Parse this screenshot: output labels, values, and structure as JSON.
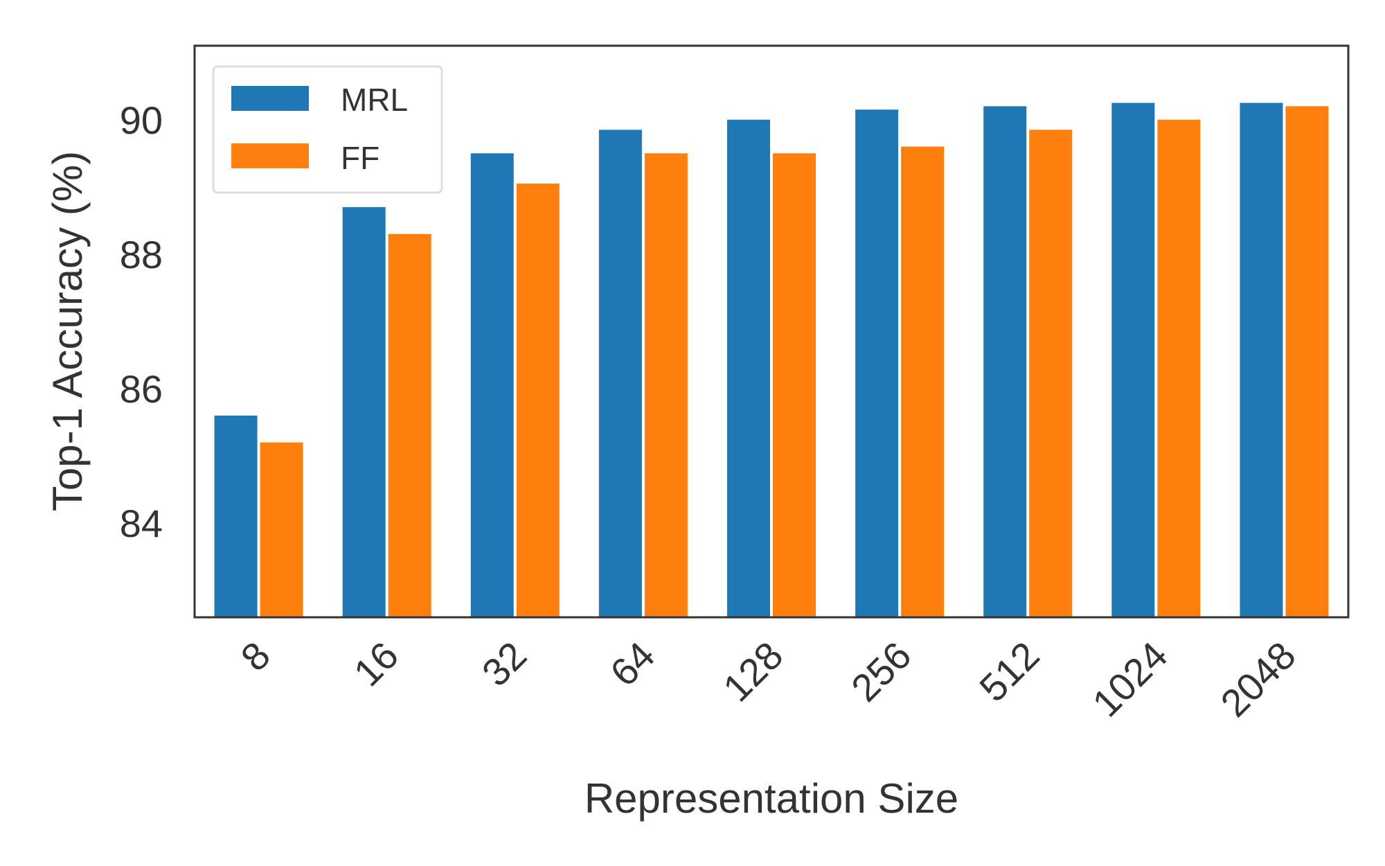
{
  "chart_data": {
    "type": "bar",
    "title": "",
    "xlabel": "Representation Size",
    "ylabel": "Top-1 Accuracy (%)",
    "categories": [
      "8",
      "16",
      "32",
      "64",
      "128",
      "256",
      "512",
      "1024",
      "2048"
    ],
    "series": [
      {
        "name": "MRL",
        "color": "#1f77b4",
        "values": [
          85.6,
          88.7,
          89.5,
          89.85,
          90.0,
          90.15,
          90.2,
          90.25,
          90.25
        ]
      },
      {
        "name": "FF",
        "color": "#ff7f0e",
        "values": [
          85.2,
          88.3,
          89.05,
          89.5,
          89.5,
          89.6,
          89.85,
          90.0,
          90.2
        ]
      }
    ],
    "ylim": [
      82.6,
      91.1
    ],
    "yticks": [
      "84",
      "86",
      "88",
      "90"
    ],
    "grid": false,
    "legend_position": "top-left"
  }
}
